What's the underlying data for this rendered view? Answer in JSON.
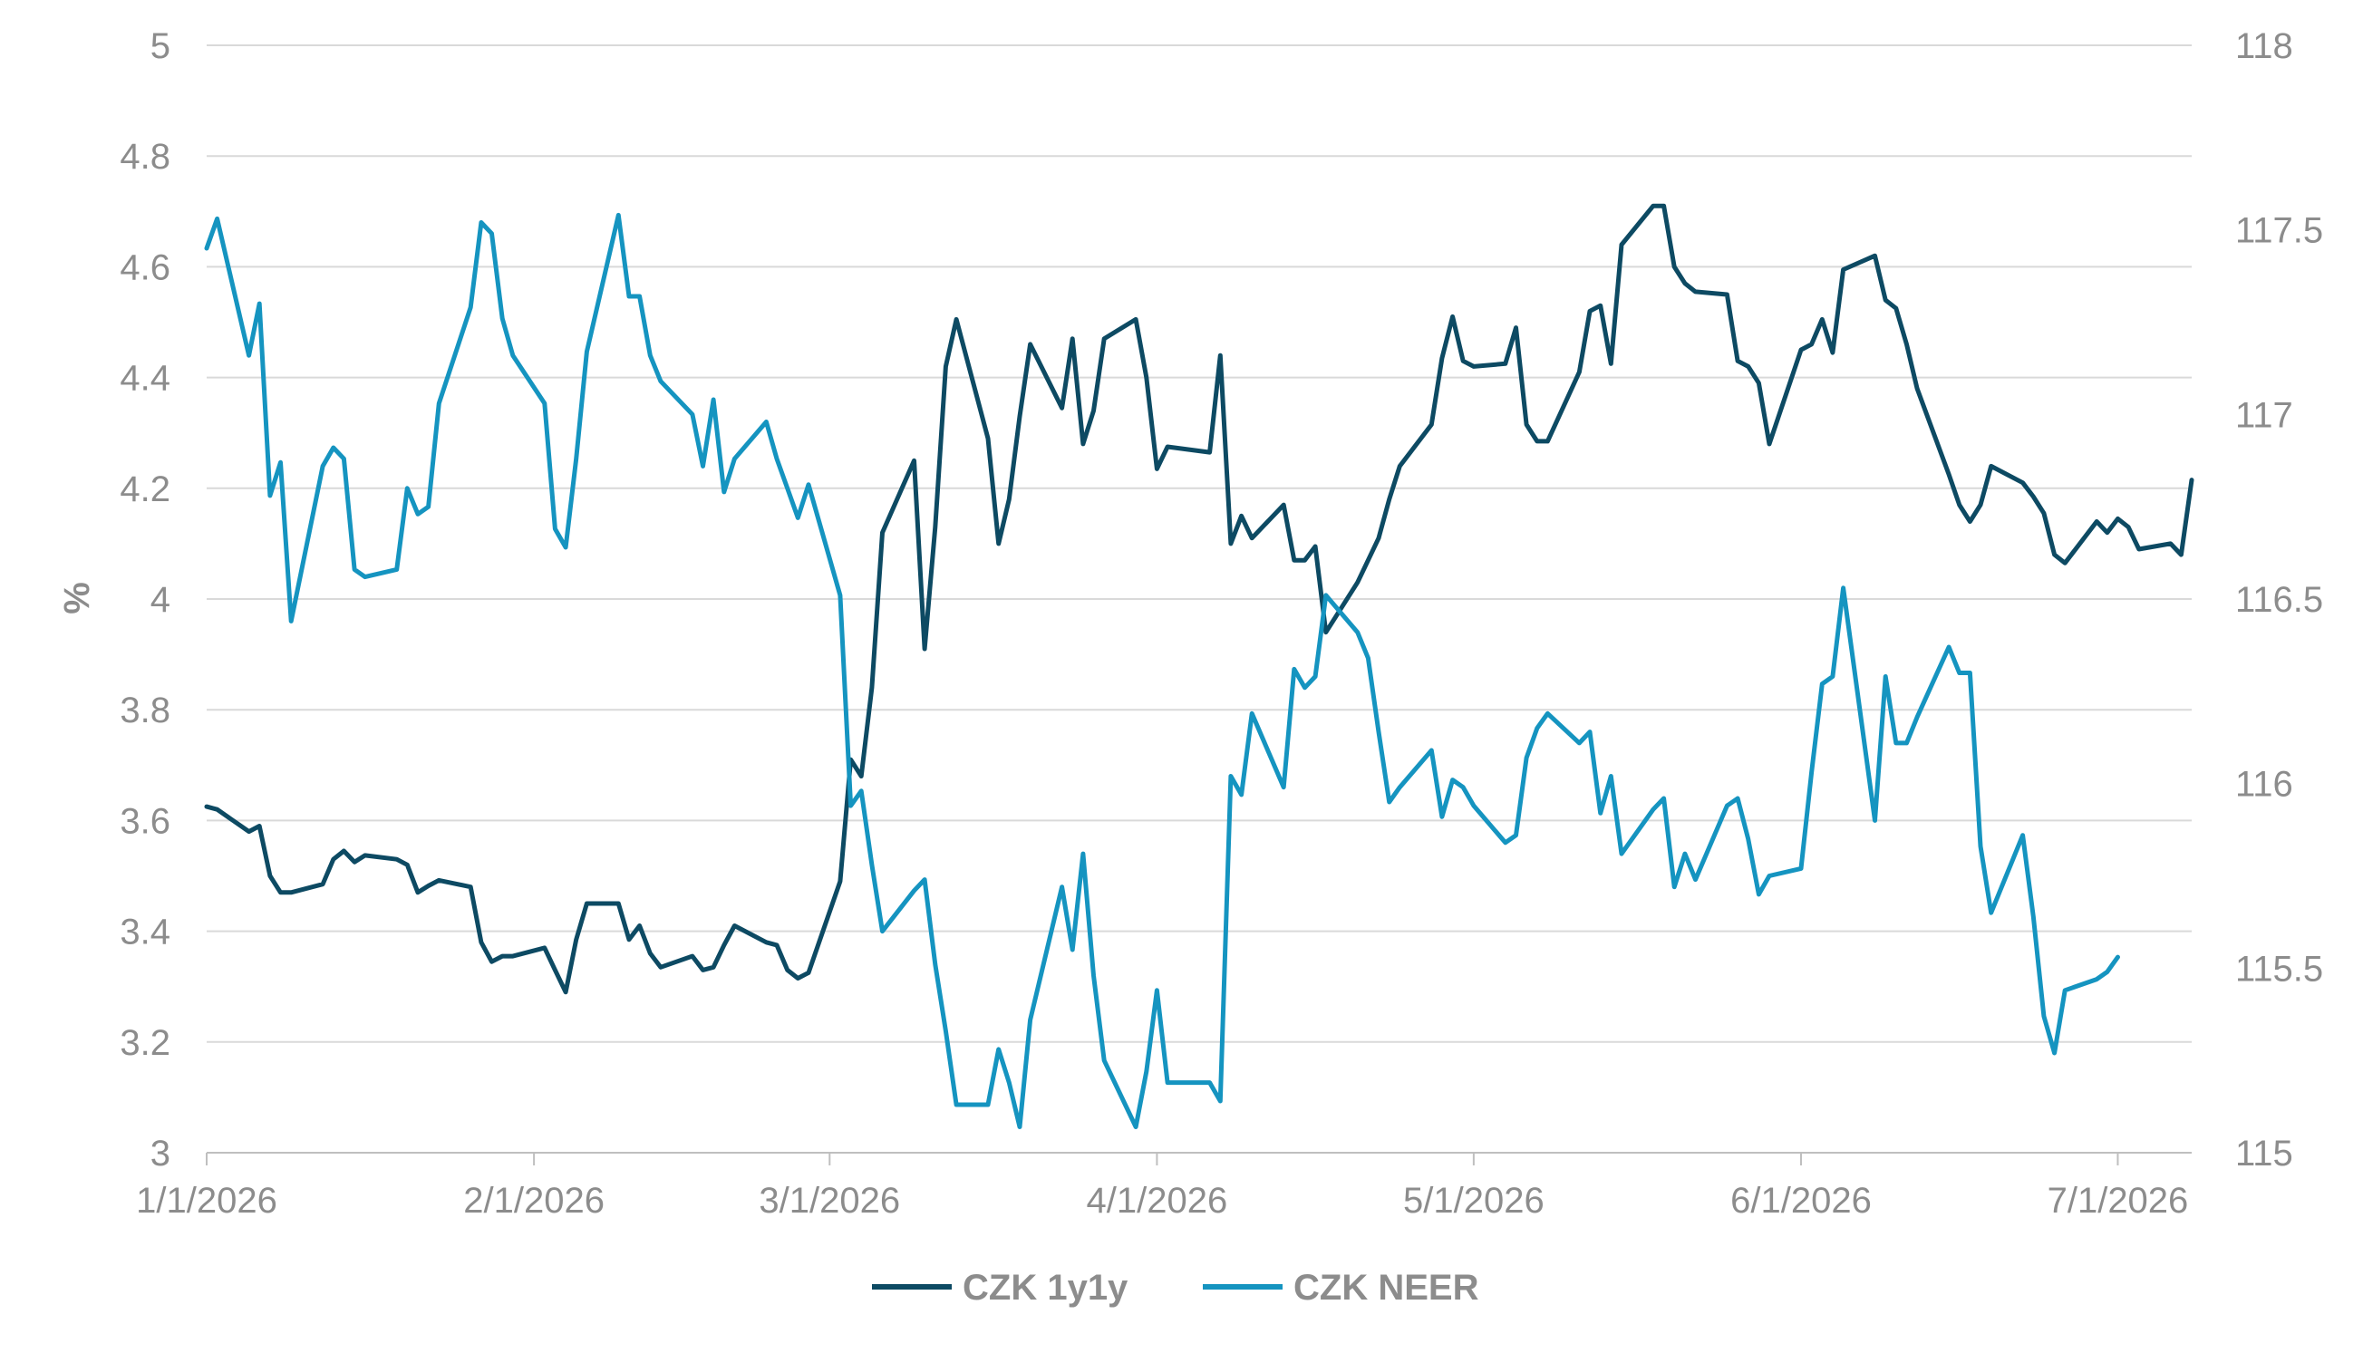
{
  "chart_data": {
    "type": "line",
    "title": "",
    "ylabel": "%",
    "y2label": "",
    "xlabel": "",
    "xlim": [
      "2026-01-01",
      "2026-07-08"
    ],
    "ylim": [
      3,
      5
    ],
    "y2lim": [
      115,
      118
    ],
    "y_ticks": [
      "3",
      "3.2",
      "3.4",
      "3.6",
      "3.8",
      "4",
      "4.2",
      "4.4",
      "4.6",
      "4.8",
      "5"
    ],
    "y2_ticks": [
      "115",
      "115.5",
      "116",
      "116.5",
      "117",
      "117.5",
      "118"
    ],
    "x_ticks": [
      {
        "label": "1/1/2026",
        "date": "2026-01-01"
      },
      {
        "label": "2/1/2026",
        "date": "2026-02-01"
      },
      {
        "label": "3/1/2026",
        "date": "2026-03-01"
      },
      {
        "label": "4/1/2026",
        "date": "2026-04-01"
      },
      {
        "label": "5/1/2026",
        "date": "2026-05-01"
      },
      {
        "label": "6/1/2026",
        "date": "2026-06-01"
      },
      {
        "label": "7/1/2026",
        "date": "2026-07-01"
      }
    ],
    "grid": true,
    "legend_position": "bottom",
    "series": [
      {
        "name": "CZK 1y1y",
        "axis": "left",
        "color": "#0d4a63",
        "points": [
          [
            "2026-01-01",
            3.625
          ],
          [
            "2026-01-02",
            3.62
          ],
          [
            "2026-01-05",
            3.58
          ],
          [
            "2026-01-06",
            3.59
          ],
          [
            "2026-01-07",
            3.5
          ],
          [
            "2026-01-08",
            3.47
          ],
          [
            "2026-01-09",
            3.47
          ],
          [
            "2026-01-12",
            3.485
          ],
          [
            "2026-01-13",
            3.53
          ],
          [
            "2026-01-14",
            3.545
          ],
          [
            "2026-01-15",
            3.525
          ],
          [
            "2026-01-16",
            3.537
          ],
          [
            "2026-01-19",
            3.53
          ],
          [
            "2026-01-20",
            3.52
          ],
          [
            "2026-01-21",
            3.47
          ],
          [
            "2026-01-22",
            3.482
          ],
          [
            "2026-01-23",
            3.492
          ],
          [
            "2026-01-26",
            3.48
          ],
          [
            "2026-01-27",
            3.38
          ],
          [
            "2026-01-28",
            3.345
          ],
          [
            "2026-01-29",
            3.355
          ],
          [
            "2026-01-30",
            3.355
          ],
          [
            "2026-02-02",
            3.37
          ],
          [
            "2026-02-03",
            3.33
          ],
          [
            "2026-02-04",
            3.29
          ],
          [
            "2026-02-05",
            3.385
          ],
          [
            "2026-02-06",
            3.45
          ],
          [
            "2026-02-09",
            3.45
          ],
          [
            "2026-02-10",
            3.385
          ],
          [
            "2026-02-11",
            3.41
          ],
          [
            "2026-02-12",
            3.36
          ],
          [
            "2026-02-13",
            3.335
          ],
          [
            "2026-02-16",
            3.355
          ],
          [
            "2026-02-17",
            3.33
          ],
          [
            "2026-02-18",
            3.335
          ],
          [
            "2026-02-19",
            3.375
          ],
          [
            "2026-02-20",
            3.41
          ],
          [
            "2026-02-23",
            3.38
          ],
          [
            "2026-02-24",
            3.375
          ],
          [
            "2026-02-25",
            3.33
          ],
          [
            "2026-02-26",
            3.315
          ],
          [
            "2026-02-27",
            3.325
          ],
          [
            "2026-03-02",
            3.49
          ],
          [
            "2026-03-03",
            3.71
          ],
          [
            "2026-03-04",
            3.68
          ],
          [
            "2026-03-05",
            3.84
          ],
          [
            "2026-03-06",
            4.12
          ],
          [
            "2026-03-09",
            4.25
          ],
          [
            "2026-03-10",
            3.91
          ],
          [
            "2026-03-11",
            4.13
          ],
          [
            "2026-03-12",
            4.42
          ],
          [
            "2026-03-13",
            4.505
          ],
          [
            "2026-03-16",
            4.29
          ],
          [
            "2026-03-17",
            4.1
          ],
          [
            "2026-03-18",
            4.18
          ],
          [
            "2026-03-19",
            4.33
          ],
          [
            "2026-03-20",
            4.46
          ],
          [
            "2026-03-23",
            4.345
          ],
          [
            "2026-03-24",
            4.47
          ],
          [
            "2026-03-25",
            4.28
          ],
          [
            "2026-03-26",
            4.34
          ],
          [
            "2026-03-27",
            4.47
          ],
          [
            "2026-03-30",
            4.505
          ],
          [
            "2026-03-31",
            4.4
          ],
          [
            "2026-04-01",
            4.235
          ],
          [
            "2026-04-02",
            4.275
          ],
          [
            "2026-04-06",
            4.265
          ],
          [
            "2026-04-07",
            4.44
          ],
          [
            "2026-04-08",
            4.1
          ],
          [
            "2026-04-09",
            4.15
          ],
          [
            "2026-04-10",
            4.11
          ],
          [
            "2026-04-13",
            4.17
          ],
          [
            "2026-04-14",
            4.07
          ],
          [
            "2026-04-15",
            4.07
          ],
          [
            "2026-04-16",
            4.095
          ],
          [
            "2026-04-17",
            3.94
          ],
          [
            "2026-04-20",
            4.03
          ],
          [
            "2026-04-21",
            4.07
          ],
          [
            "2026-04-22",
            4.11
          ],
          [
            "2026-04-23",
            4.18
          ],
          [
            "2026-04-24",
            4.24
          ],
          [
            "2026-04-27",
            4.315
          ],
          [
            "2026-04-28",
            4.435
          ],
          [
            "2026-04-29",
            4.51
          ],
          [
            "2026-04-30",
            4.43
          ],
          [
            "2026-05-01",
            4.42
          ],
          [
            "2026-05-04",
            4.425
          ],
          [
            "2026-05-05",
            4.49
          ],
          [
            "2026-05-06",
            4.315
          ],
          [
            "2026-05-07",
            4.285
          ],
          [
            "2026-05-08",
            4.285
          ],
          [
            "2026-05-11",
            4.41
          ],
          [
            "2026-05-12",
            4.52
          ],
          [
            "2026-05-13",
            4.53
          ],
          [
            "2026-05-14",
            4.425
          ],
          [
            "2026-05-15",
            4.64
          ],
          [
            "2026-05-18",
            4.71
          ],
          [
            "2026-05-19",
            4.71
          ],
          [
            "2026-05-20",
            4.6
          ],
          [
            "2026-05-21",
            4.57
          ],
          [
            "2026-05-22",
            4.555
          ],
          [
            "2026-05-25",
            4.55
          ],
          [
            "2026-05-26",
            4.43
          ],
          [
            "2026-05-27",
            4.42
          ],
          [
            "2026-05-28",
            4.39
          ],
          [
            "2026-05-29",
            4.28
          ],
          [
            "2026-06-01",
            4.45
          ],
          [
            "2026-06-02",
            4.46
          ],
          [
            "2026-06-03",
            4.505
          ],
          [
            "2026-06-04",
            4.445
          ],
          [
            "2026-06-05",
            4.595
          ],
          [
            "2026-06-08",
            4.62
          ],
          [
            "2026-06-09",
            4.54
          ],
          [
            "2026-06-10",
            4.525
          ],
          [
            "2026-06-11",
            4.46
          ],
          [
            "2026-06-12",
            4.38
          ],
          [
            "2026-06-15",
            4.225
          ],
          [
            "2026-06-16",
            4.17
          ],
          [
            "2026-06-17",
            4.14
          ],
          [
            "2026-06-18",
            4.17
          ],
          [
            "2026-06-19",
            4.24
          ],
          [
            "2026-06-22",
            4.21
          ],
          [
            "2026-06-23",
            4.185
          ],
          [
            "2026-06-24",
            4.155
          ],
          [
            "2026-06-25",
            4.08
          ],
          [
            "2026-06-26",
            4.065
          ],
          [
            "2026-06-29",
            4.14
          ],
          [
            "2026-06-30",
            4.12
          ],
          [
            "2026-07-01",
            4.145
          ],
          [
            "2026-07-02",
            4.13
          ],
          [
            "2026-07-03",
            4.09
          ],
          [
            "2026-07-06",
            4.1
          ],
          [
            "2026-07-07",
            4.08
          ],
          [
            "2026-07-08",
            4.215
          ]
        ]
      },
      {
        "name": "CZK NEER",
        "axis": "right",
        "color": "#1594c0",
        "points": [
          [
            "2026-01-01",
            117.45
          ],
          [
            "2026-01-02",
            117.53
          ],
          [
            "2026-01-05",
            117.16
          ],
          [
            "2026-01-06",
            117.3
          ],
          [
            "2026-01-07",
            116.78
          ],
          [
            "2026-01-08",
            116.87
          ],
          [
            "2026-01-09",
            116.44
          ],
          [
            "2026-01-12",
            116.86
          ],
          [
            "2026-01-13",
            116.91
          ],
          [
            "2026-01-14",
            116.88
          ],
          [
            "2026-01-15",
            116.58
          ],
          [
            "2026-01-16",
            116.56
          ],
          [
            "2026-01-19",
            116.58
          ],
          [
            "2026-01-20",
            116.8
          ],
          [
            "2026-01-21",
            116.73
          ],
          [
            "2026-01-22",
            116.75
          ],
          [
            "2026-01-23",
            117.03
          ],
          [
            "2026-01-26",
            117.29
          ],
          [
            "2026-01-27",
            117.52
          ],
          [
            "2026-01-28",
            117.49
          ],
          [
            "2026-01-29",
            117.26
          ],
          [
            "2026-01-30",
            117.16
          ],
          [
            "2026-02-02",
            117.03
          ],
          [
            "2026-02-03",
            116.69
          ],
          [
            "2026-02-04",
            116.64
          ],
          [
            "2026-02-05",
            116.88
          ],
          [
            "2026-02-06",
            117.17
          ],
          [
            "2026-02-09",
            117.54
          ],
          [
            "2026-02-10",
            117.32
          ],
          [
            "2026-02-11",
            117.32
          ],
          [
            "2026-02-12",
            117.16
          ],
          [
            "2026-02-13",
            117.09
          ],
          [
            "2026-02-16",
            117.0
          ],
          [
            "2026-02-17",
            116.86
          ],
          [
            "2026-02-18",
            117.04
          ],
          [
            "2026-02-19",
            116.79
          ],
          [
            "2026-02-20",
            116.88
          ],
          [
            "2026-02-23",
            116.98
          ],
          [
            "2026-02-24",
            116.88
          ],
          [
            "2026-02-25",
            116.8
          ],
          [
            "2026-02-26",
            116.72
          ],
          [
            "2026-02-27",
            116.81
          ],
          [
            "2026-03-02",
            116.51
          ],
          [
            "2026-03-03",
            115.94
          ],
          [
            "2026-03-04",
            115.98
          ],
          [
            "2026-03-05",
            115.78
          ],
          [
            "2026-03-06",
            115.6
          ],
          [
            "2026-03-09",
            115.71
          ],
          [
            "2026-03-10",
            115.74
          ],
          [
            "2026-03-11",
            115.51
          ],
          [
            "2026-03-12",
            115.33
          ],
          [
            "2026-03-13",
            115.13
          ],
          [
            "2026-03-16",
            115.13
          ],
          [
            "2026-03-17",
            115.28
          ],
          [
            "2026-03-18",
            115.19
          ],
          [
            "2026-03-19",
            115.07
          ],
          [
            "2026-03-20",
            115.36
          ],
          [
            "2026-03-23",
            115.72
          ],
          [
            "2026-03-24",
            115.55
          ],
          [
            "2026-03-25",
            115.81
          ],
          [
            "2026-03-26",
            115.48
          ],
          [
            "2026-03-27",
            115.25
          ],
          [
            "2026-03-30",
            115.07
          ],
          [
            "2026-03-31",
            115.22
          ],
          [
            "2026-04-01",
            115.44
          ],
          [
            "2026-04-02",
            115.19
          ],
          [
            "2026-04-06",
            115.19
          ],
          [
            "2026-04-07",
            115.14
          ],
          [
            "2026-04-08",
            116.02
          ],
          [
            "2026-04-09",
            115.97
          ],
          [
            "2026-04-10",
            116.19
          ],
          [
            "2026-04-13",
            115.99
          ],
          [
            "2026-04-14",
            116.31
          ],
          [
            "2026-04-15",
            116.26
          ],
          [
            "2026-04-16",
            116.29
          ],
          [
            "2026-04-17",
            116.51
          ],
          [
            "2026-04-20",
            116.41
          ],
          [
            "2026-04-21",
            116.34
          ],
          [
            "2026-04-22",
            116.14
          ],
          [
            "2026-04-23",
            115.95
          ],
          [
            "2026-04-24",
            115.99
          ],
          [
            "2026-04-27",
            116.09
          ],
          [
            "2026-04-28",
            115.91
          ],
          [
            "2026-04-29",
            116.01
          ],
          [
            "2026-04-30",
            115.99
          ],
          [
            "2026-05-01",
            115.94
          ],
          [
            "2026-05-04",
            115.84
          ],
          [
            "2026-05-05",
            115.86
          ],
          [
            "2026-05-06",
            116.07
          ],
          [
            "2026-05-07",
            116.15
          ],
          [
            "2026-05-08",
            116.19
          ],
          [
            "2026-05-11",
            116.11
          ],
          [
            "2026-05-12",
            116.14
          ],
          [
            "2026-05-13",
            115.92
          ],
          [
            "2026-05-14",
            116.02
          ],
          [
            "2026-05-15",
            115.81
          ],
          [
            "2026-05-18",
            115.93
          ],
          [
            "2026-05-19",
            115.96
          ],
          [
            "2026-05-20",
            115.72
          ],
          [
            "2026-05-21",
            115.81
          ],
          [
            "2026-05-22",
            115.74
          ],
          [
            "2026-05-25",
            115.94
          ],
          [
            "2026-05-26",
            115.96
          ],
          [
            "2026-05-27",
            115.85
          ],
          [
            "2026-05-28",
            115.7
          ],
          [
            "2026-05-29",
            115.75
          ],
          [
            "2026-06-01",
            115.77
          ],
          [
            "2026-06-02",
            116.03
          ],
          [
            "2026-06-03",
            116.27
          ],
          [
            "2026-06-04",
            116.29
          ],
          [
            "2026-06-05",
            116.53
          ],
          [
            "2026-06-08",
            115.9
          ],
          [
            "2026-06-09",
            116.29
          ],
          [
            "2026-06-10",
            116.11
          ],
          [
            "2026-06-11",
            116.11
          ],
          [
            "2026-06-12",
            116.18
          ],
          [
            "2026-06-15",
            116.37
          ],
          [
            "2026-06-16",
            116.3
          ],
          [
            "2026-06-17",
            116.3
          ],
          [
            "2026-06-18",
            115.83
          ],
          [
            "2026-06-19",
            115.65
          ],
          [
            "2026-06-22",
            115.86
          ],
          [
            "2026-06-23",
            115.64
          ],
          [
            "2026-06-24",
            115.37
          ],
          [
            "2026-06-25",
            115.27
          ],
          [
            "2026-06-26",
            115.44
          ],
          [
            "2026-06-29",
            115.47
          ],
          [
            "2026-06-30",
            115.49
          ],
          [
            "2026-07-01",
            115.53
          ]
        ]
      }
    ]
  }
}
